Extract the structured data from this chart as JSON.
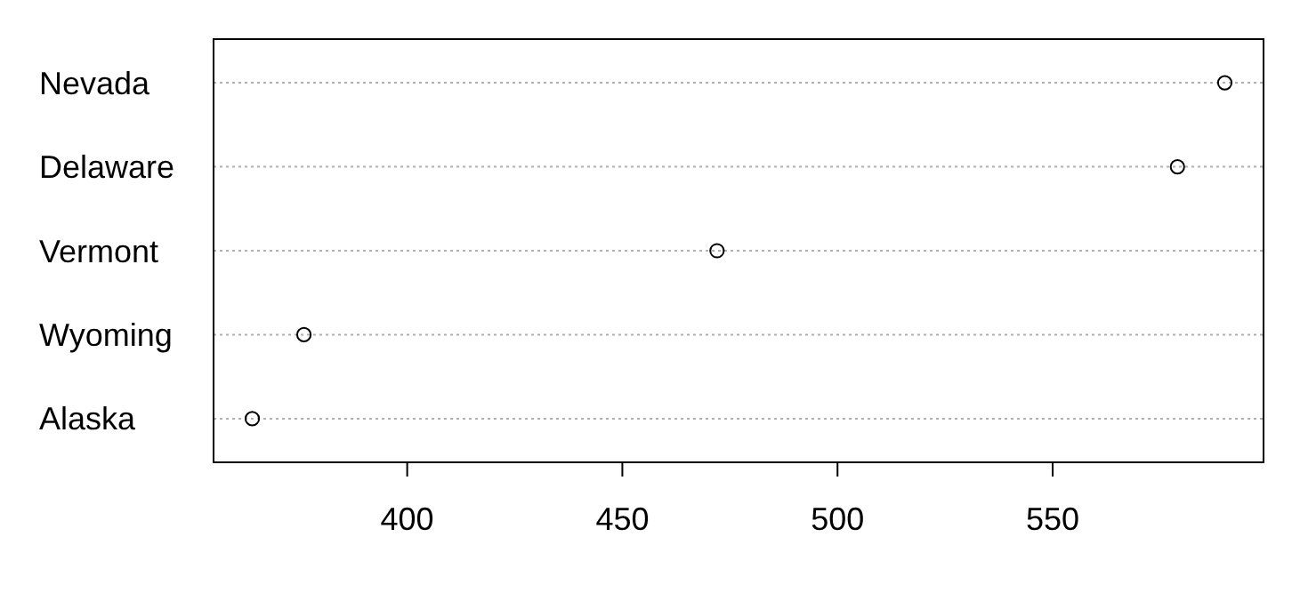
{
  "chart_data": {
    "type": "scatter",
    "orientation": "horizontal",
    "categories": [
      "Nevada",
      "Delaware",
      "Vermont",
      "Wyoming",
      "Alaska"
    ],
    "values": [
      590,
      579,
      472,
      376,
      364
    ],
    "color": "#000000",
    "xlim": [
      355,
      599
    ],
    "xticks": [
      400,
      450,
      500,
      550
    ],
    "grid": "y",
    "marker": "circle"
  }
}
